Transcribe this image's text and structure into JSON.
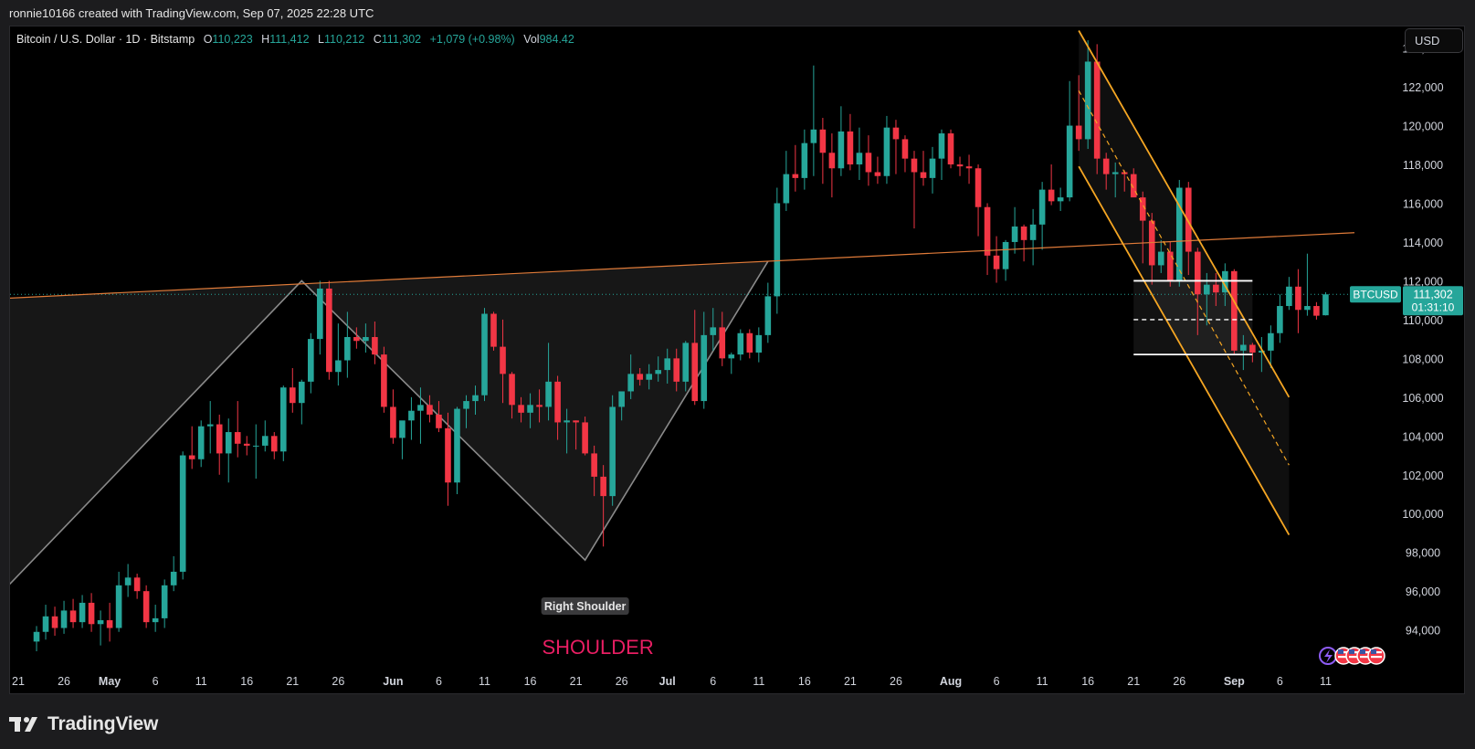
{
  "header": {
    "credit": "ronnie10166 created with TradingView.com, Sep 07, 2025 22:28 UTC"
  },
  "legend": {
    "title": "Bitcoin / U.S. Dollar · 1D · Bitstamp",
    "o_label": "O",
    "o": "110,223",
    "h_label": "H",
    "h": "111,412",
    "l_label": "L",
    "l": "110,212",
    "c_label": "C",
    "c": "111,302",
    "change": "+1,079 (+0.98%)",
    "vol_label": "Vol",
    "vol": "984.42"
  },
  "currency_button": "USD",
  "price_badge": {
    "symbol": "BTCUSD",
    "price": "111,302",
    "countdown": "01:31:10"
  },
  "annotations": {
    "right_shoulder": "Right Shoulder",
    "shoulder": "SHOULDER"
  },
  "footer": {
    "brand": "TradingView"
  },
  "colors": {
    "up": "#26a69a",
    "down": "#f23645",
    "channel": "#f5a623",
    "neckline": "#e07b39",
    "shoulder_text": "#e91e63"
  },
  "chart_data": {
    "type": "candlestick",
    "symbol": "BTCUSD",
    "interval": "1D",
    "ylim": [
      92900,
      125300
    ],
    "y_ticks": [
      94000,
      96000,
      98000,
      100000,
      102000,
      104000,
      106000,
      108000,
      110000,
      112000,
      114000,
      116000,
      118000,
      120000,
      122000,
      124000
    ],
    "y_tick_labels": [
      "94,000",
      "96,000",
      "98,000",
      "100,000",
      "102,000",
      "104,000",
      "106,000",
      "108,000",
      "110,000",
      "112,000",
      "114,000",
      "116,000",
      "118,000",
      "120,000",
      "122,000",
      "124,000"
    ],
    "x_ticks": [
      {
        "label": "21",
        "day": 0
      },
      {
        "label": "26",
        "day": 5
      },
      {
        "label": "May",
        "day": 10
      },
      {
        "label": "6",
        "day": 15
      },
      {
        "label": "11",
        "day": 20
      },
      {
        "label": "16",
        "day": 25
      },
      {
        "label": "21",
        "day": 30
      },
      {
        "label": "26",
        "day": 35
      },
      {
        "label": "Jun",
        "day": 41
      },
      {
        "label": "6",
        "day": 46
      },
      {
        "label": "11",
        "day": 51
      },
      {
        "label": "16",
        "day": 56
      },
      {
        "label": "21",
        "day": 61
      },
      {
        "label": "26",
        "day": 66
      },
      {
        "label": "Jul",
        "day": 71
      },
      {
        "label": "6",
        "day": 76
      },
      {
        "label": "11",
        "day": 81
      },
      {
        "label": "16",
        "day": 86
      },
      {
        "label": "21",
        "day": 91
      },
      {
        "label": "26",
        "day": 96
      },
      {
        "label": "Aug",
        "day": 102
      },
      {
        "label": "6",
        "day": 107
      },
      {
        "label": "11",
        "day": 112
      },
      {
        "label": "16",
        "day": 117
      },
      {
        "label": "21",
        "day": 122
      },
      {
        "label": "26",
        "day": 127
      },
      {
        "label": "Sep",
        "day": 133
      },
      {
        "label": "6",
        "day": 138
      },
      {
        "label": "11",
        "day": 143
      }
    ],
    "candles_start_day": 2,
    "candles": [
      [
        93400,
        94200,
        92900,
        93900
      ],
      [
        93900,
        95300,
        93500,
        94700
      ],
      [
        94700,
        95200,
        93700,
        94100
      ],
      [
        94100,
        95500,
        93800,
        95000
      ],
      [
        95000,
        95600,
        94100,
        94400
      ],
      [
        94400,
        95800,
        94100,
        95400
      ],
      [
        95400,
        95900,
        93900,
        94300
      ],
      [
        94300,
        95000,
        93200,
        94500
      ],
      [
        94500,
        95400,
        93400,
        94100
      ],
      [
        94100,
        97000,
        93900,
        96300
      ],
      [
        96300,
        97400,
        95700,
        96700
      ],
      [
        96700,
        96900,
        95600,
        96000
      ],
      [
        96000,
        96300,
        94100,
        94400
      ],
      [
        94400,
        95300,
        93900,
        94600
      ],
      [
        94600,
        96600,
        94100,
        96300
      ],
      [
        96300,
        97800,
        96000,
        97000
      ],
      [
        97000,
        103200,
        96600,
        103000
      ],
      [
        103000,
        104500,
        102300,
        102800
      ],
      [
        102800,
        104800,
        102400,
        104500
      ],
      [
        104500,
        105800,
        103100,
        104600
      ],
      [
        104600,
        105100,
        102000,
        103100
      ],
      [
        103100,
        104900,
        101600,
        104200
      ],
      [
        104200,
        105800,
        102900,
        103600
      ],
      [
        103600,
        104000,
        103000,
        103500
      ],
      [
        103500,
        104600,
        101800,
        103500
      ],
      [
        103500,
        104800,
        103200,
        104000
      ],
      [
        104000,
        104200,
        102800,
        103200
      ],
      [
        103200,
        106600,
        102700,
        106500
      ],
      [
        106500,
        107500,
        105200,
        105700
      ],
      [
        105700,
        106900,
        104600,
        106800
      ],
      [
        106800,
        109300,
        106200,
        109000
      ],
      [
        109000,
        112000,
        108200,
        111600
      ],
      [
        111600,
        112000,
        106900,
        107300
      ],
      [
        107300,
        109800,
        106600,
        107900
      ],
      [
        107900,
        110400,
        107000,
        109100
      ],
      [
        109100,
        109600,
        108500,
        108900
      ],
      [
        108900,
        109800,
        108300,
        109100
      ],
      [
        109100,
        109900,
        107700,
        108200
      ],
      [
        108200,
        108600,
        105200,
        105500
      ],
      [
        105500,
        106400,
        103600,
        103900
      ],
      [
        103900,
        104500,
        102800,
        104800
      ],
      [
        104800,
        106000,
        103800,
        105300
      ],
      [
        105300,
        106500,
        103600,
        105600
      ],
      [
        105600,
        106100,
        104700,
        105100
      ],
      [
        105100,
        105800,
        104200,
        104400
      ],
      [
        104400,
        105200,
        100400,
        101600
      ],
      [
        101600,
        105500,
        101000,
        105400
      ],
      [
        105400,
        106100,
        104400,
        105800
      ],
      [
        105800,
        106600,
        105100,
        106100
      ],
      [
        106100,
        110600,
        105800,
        110300
      ],
      [
        110300,
        110400,
        108400,
        108600
      ],
      [
        108600,
        110000,
        105700,
        107200
      ],
      [
        107200,
        107300,
        104900,
        105600
      ],
      [
        105600,
        106000,
        104700,
        105200
      ],
      [
        105200,
        106200,
        104400,
        105600
      ],
      [
        105600,
        106400,
        104700,
        105500
      ],
      [
        105500,
        108800,
        104800,
        106800
      ],
      [
        106800,
        107100,
        103800,
        104700
      ],
      [
        104700,
        105400,
        103100,
        104800
      ],
      [
        104800,
        104800,
        103300,
        104700
      ],
      [
        104700,
        105000,
        103000,
        103100
      ],
      [
        103100,
        103500,
        100900,
        101900
      ],
      [
        101900,
        102500,
        98300,
        100900
      ],
      [
        100900,
        106100,
        100400,
        105500
      ],
      [
        105500,
        106200,
        104800,
        106300
      ],
      [
        106300,
        108200,
        105900,
        107200
      ],
      [
        107200,
        107500,
        106600,
        106900
      ],
      [
        106900,
        107700,
        106400,
        107200
      ],
      [
        107200,
        108100,
        106800,
        107400
      ],
      [
        107400,
        108500,
        106700,
        108000
      ],
      [
        108000,
        108500,
        106300,
        106800
      ],
      [
        106800,
        108900,
        106300,
        108800
      ],
      [
        108800,
        110500,
        105600,
        105800
      ],
      [
        105800,
        110400,
        105400,
        109200
      ],
      [
        109200,
        110600,
        108400,
        109600
      ],
      [
        109600,
        110400,
        107600,
        108000
      ],
      [
        108000,
        108300,
        107200,
        108200
      ],
      [
        108200,
        109500,
        107900,
        109300
      ],
      [
        109300,
        109500,
        108000,
        108300
      ],
      [
        108300,
        109600,
        107800,
        109200
      ],
      [
        109200,
        111900,
        108800,
        111200
      ],
      [
        111200,
        116800,
        110300,
        116000
      ],
      [
        116000,
        118700,
        115600,
        117500
      ],
      [
        117500,
        119000,
        116600,
        117300
      ],
      [
        117300,
        119800,
        116700,
        119100
      ],
      [
        119100,
        123100,
        117400,
        119800
      ],
      [
        119800,
        120400,
        117000,
        118600
      ],
      [
        118600,
        119600,
        116300,
        117800
      ],
      [
        117800,
        121000,
        117400,
        119700
      ],
      [
        119700,
        120600,
        117700,
        118000
      ],
      [
        118000,
        119900,
        117200,
        118600
      ],
      [
        118600,
        119500,
        116900,
        117600
      ],
      [
        117600,
        118400,
        117000,
        117400
      ],
      [
        117400,
        120500,
        117000,
        119900
      ],
      [
        119900,
        120300,
        117500,
        119300
      ],
      [
        119300,
        119500,
        117600,
        118300
      ],
      [
        118300,
        118700,
        114700,
        117600
      ],
      [
        117600,
        118700,
        116900,
        117300
      ],
      [
        117300,
        118900,
        116500,
        118300
      ],
      [
        118300,
        119800,
        117200,
        119600
      ],
      [
        119600,
        119800,
        117800,
        118000
      ],
      [
        118000,
        118400,
        117400,
        117900
      ],
      [
        117900,
        118500,
        117000,
        117800
      ],
      [
        117800,
        118000,
        114300,
        115800
      ],
      [
        115800,
        116000,
        112300,
        113300
      ],
      [
        113300,
        114300,
        111900,
        112600
      ],
      [
        112600,
        114100,
        112000,
        114000
      ],
      [
        114000,
        115800,
        113400,
        114800
      ],
      [
        114800,
        114900,
        113000,
        114100
      ],
      [
        114100,
        115700,
        112800,
        114900
      ],
      [
        114900,
        117100,
        113600,
        116700
      ],
      [
        116700,
        118000,
        115900,
        116100
      ],
      [
        116100,
        116800,
        115600,
        116300
      ],
      [
        116300,
        122300,
        116100,
        120000
      ],
      [
        120000,
        122600,
        118700,
        119300
      ],
      [
        119300,
        124400,
        118800,
        123300
      ],
      [
        123300,
        124200,
        117500,
        118300
      ],
      [
        118300,
        118600,
        116700,
        117500
      ],
      [
        117500,
        118100,
        116300,
        117600
      ],
      [
        117600,
        117700,
        116600,
        117500
      ],
      [
        117500,
        117800,
        116500,
        116300
      ],
      [
        116300,
        116600,
        112900,
        115100
      ],
      [
        115100,
        115500,
        111800,
        112800
      ],
      [
        112800,
        114100,
        112400,
        113500
      ],
      [
        113500,
        114000,
        111700,
        112000
      ],
      [
        112000,
        117200,
        111700,
        116800
      ],
      [
        116800,
        117100,
        112300,
        113500
      ],
      [
        113500,
        113700,
        109200,
        111300
      ],
      [
        111300,
        112400,
        109700,
        111800
      ],
      [
        111800,
        112400,
        110700,
        111400
      ],
      [
        111400,
        112900,
        110700,
        112500
      ],
      [
        112500,
        112600,
        108200,
        108400
      ],
      [
        108400,
        109200,
        107400,
        108700
      ],
      [
        108700,
        108800,
        107800,
        108300
      ],
      [
        108300,
        109100,
        107300,
        108400
      ],
      [
        108400,
        109700,
        107500,
        109300
      ],
      [
        109300,
        111300,
        108800,
        110700
      ],
      [
        110700,
        112200,
        110500,
        111700
      ],
      [
        111700,
        112600,
        109300,
        110500
      ],
      [
        110500,
        113400,
        110200,
        110700
      ],
      [
        110700,
        110900,
        110000,
        110200
      ],
      [
        110223,
        111412,
        110212,
        111302
      ]
    ],
    "neckline": {
      "from": [
        -10,
        110900
      ],
      "to": [
        147,
        114500
      ]
    },
    "pattern_path": [
      [
        -8,
        92900
      ],
      [
        31,
        112000
      ],
      [
        62,
        97600
      ],
      [
        82,
        113000
      ]
    ],
    "price_line": 111302,
    "channel": {
      "upper": [
        [
          116,
          124900
        ],
        [
          139,
          106000
        ]
      ],
      "mid": [
        [
          116,
          121800
        ],
        [
          139,
          102500
        ]
      ],
      "lower": [
        [
          116,
          117900
        ],
        [
          139,
          98900
        ]
      ]
    },
    "range_box": {
      "top": 112000,
      "bottom": 108200,
      "mid": 110000,
      "x0": 122,
      "x1": 135
    }
  }
}
